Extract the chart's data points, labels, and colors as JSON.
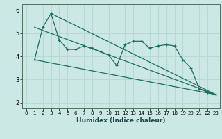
{
  "xlabel": "Humidex (Indice chaleur)",
  "background_color": "#cce8e4",
  "grid_color": "#b8d8d4",
  "line_color": "#1a6e60",
  "xlim": [
    -0.5,
    23.5
  ],
  "ylim": [
    1.75,
    6.25
  ],
  "xticks": [
    0,
    1,
    2,
    3,
    4,
    5,
    6,
    7,
    8,
    9,
    10,
    11,
    12,
    13,
    14,
    15,
    16,
    17,
    18,
    19,
    20,
    21,
    22,
    23
  ],
  "yticks": [
    2,
    3,
    4,
    5,
    6
  ],
  "wavy_x": [
    1,
    2,
    3,
    4,
    5,
    6,
    7,
    8,
    9,
    10,
    11,
    12,
    13,
    14,
    15,
    16,
    17,
    18,
    19,
    20,
    21,
    22,
    23
  ],
  "wavy_y": [
    3.85,
    5.25,
    5.85,
    4.7,
    4.3,
    4.3,
    4.45,
    4.35,
    4.2,
    4.05,
    3.6,
    4.5,
    4.65,
    4.65,
    4.35,
    4.45,
    4.5,
    4.45,
    3.85,
    3.5,
    2.6,
    2.45,
    2.35
  ],
  "trend1_x": [
    1,
    23
  ],
  "trend1_y": [
    5.25,
    2.35
  ],
  "trend2_x": [
    1,
    23
  ],
  "trend2_y": [
    3.85,
    2.35
  ],
  "trend3_x": [
    3,
    23
  ],
  "trend3_y": [
    5.85,
    2.35
  ]
}
